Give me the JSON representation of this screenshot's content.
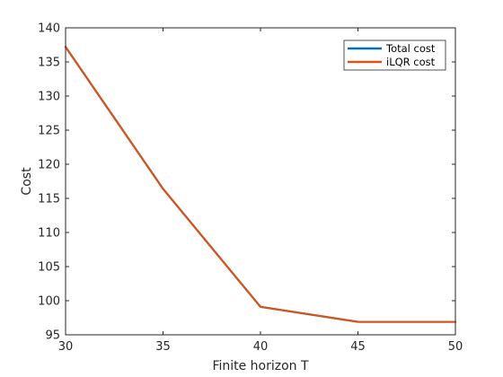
{
  "chart_data": {
    "type": "line",
    "xlabel": "Finite horizon T",
    "ylabel": "Cost",
    "xlim": [
      30,
      50
    ],
    "ylim": [
      95,
      140
    ],
    "xticks": [
      30,
      35,
      40,
      45,
      50
    ],
    "yticks": [
      95,
      100,
      105,
      110,
      115,
      120,
      125,
      130,
      135,
      140
    ],
    "grid": false,
    "legend_position": "top-right",
    "x": [
      30,
      35,
      40,
      45,
      50
    ],
    "series": [
      {
        "name": "Total cost",
        "color": "#0072BD",
        "values": [
          137.2,
          116.4,
          99.1,
          96.9,
          96.9
        ]
      },
      {
        "name": "iLQR cost",
        "color": "#D95319",
        "values": [
          137.2,
          116.4,
          99.1,
          96.9,
          96.9
        ]
      }
    ]
  }
}
